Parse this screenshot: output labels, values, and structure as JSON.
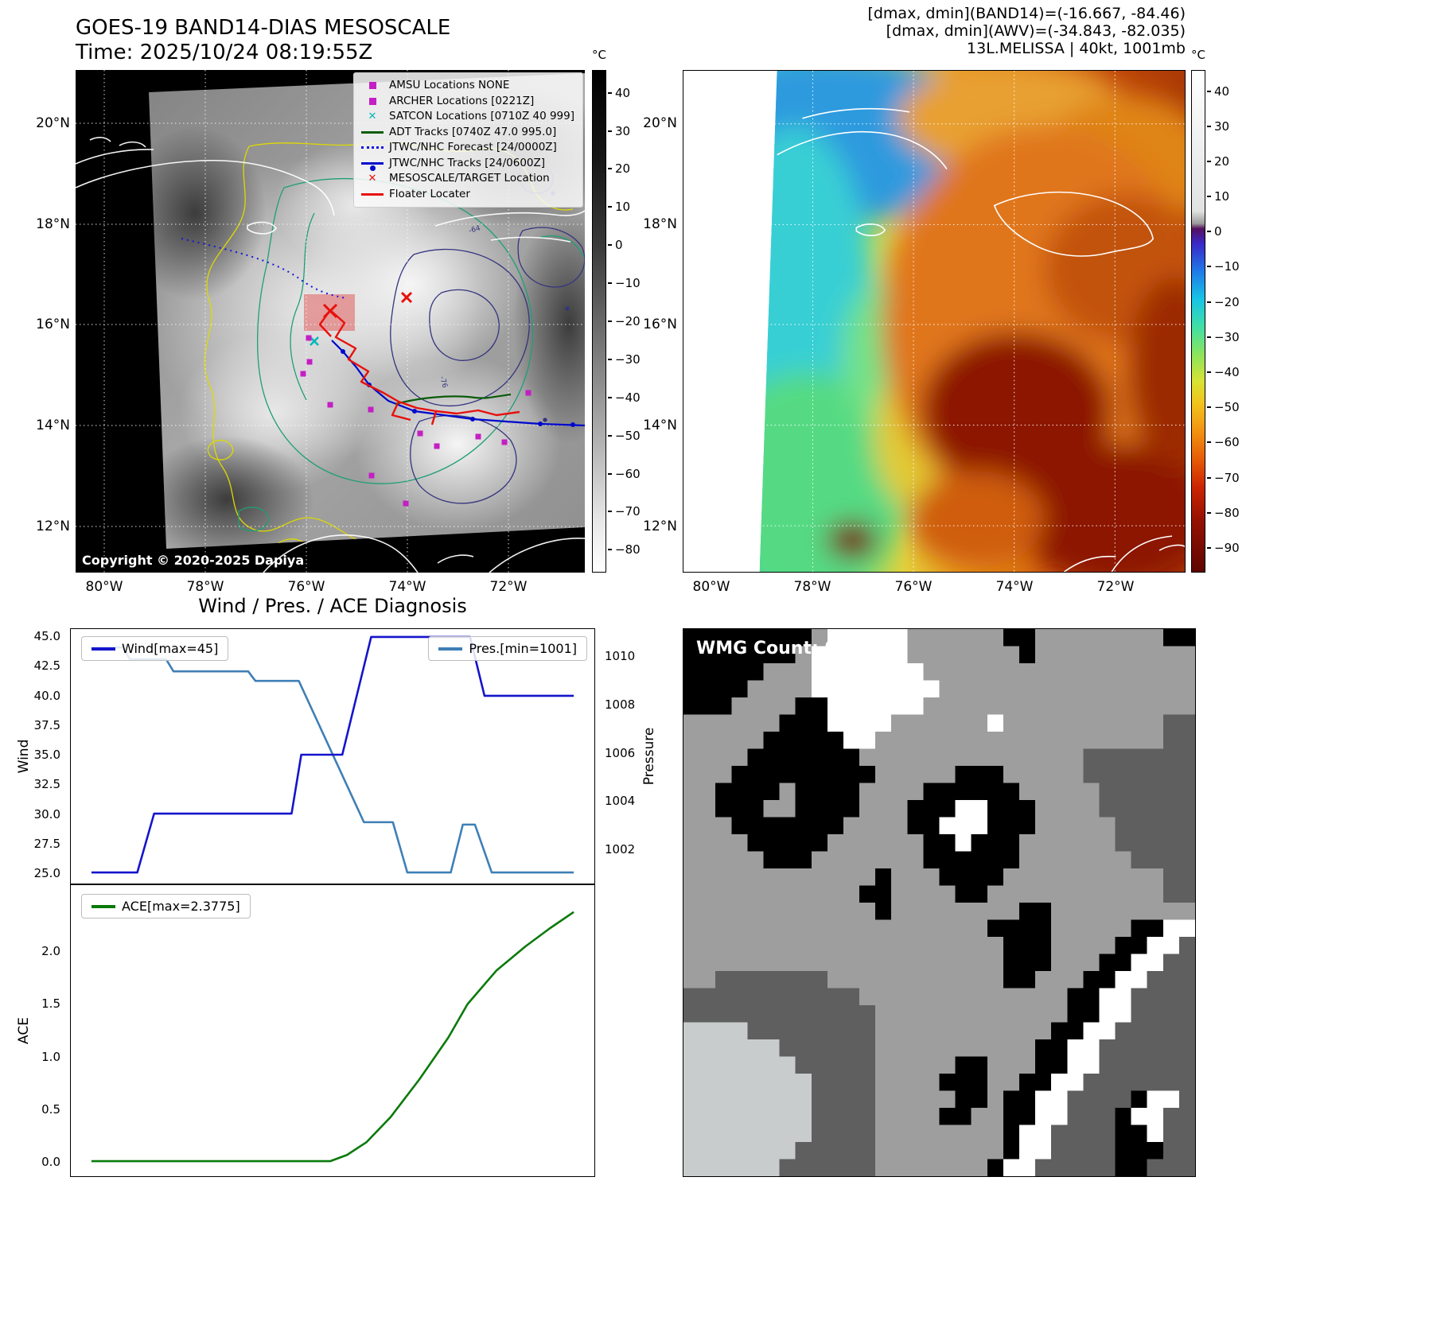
{
  "panel_band14": {
    "title_line1": "GOES-19 BAND14-DIAS MESOSCALE",
    "title_line2": "Time: 2025/10/24 08:19:55Z",
    "copyright": "Copyright © 2020-2025 Dapiya",
    "colorbar_unit": "°C",
    "colorbar_ticks": [
      "40",
      "30",
      "20",
      "10",
      "0",
      "−10",
      "−20",
      "−30",
      "−40",
      "−50",
      "−60",
      "−70",
      "−80"
    ],
    "lat_ticks": [
      "20°N",
      "18°N",
      "16°N",
      "14°N",
      "12°N"
    ],
    "lon_ticks": [
      "80°W",
      "78°W",
      "76°W",
      "74°W",
      "72°W"
    ],
    "contour_labels": [
      "-64",
      "-76"
    ],
    "legend": [
      {
        "label": "AMSU Locations NONE",
        "swatch": "square",
        "color": "#c41fc4"
      },
      {
        "label": "ARCHER Locations [0221Z]",
        "swatch": "square",
        "color": "#c41fc4"
      },
      {
        "label": "SATCON Locations [0710Z 40 999]",
        "swatch": "x",
        "color": "#00b8b8"
      },
      {
        "label": "ADT Tracks [0740Z 47.0 995.0]",
        "swatch": "line",
        "color": "#0a5c0a"
      },
      {
        "label": "JTWC/NHC Forecast [24/0000Z]",
        "swatch": "dotted",
        "color": "#1515dd"
      },
      {
        "label": "JTWC/NHC Tracks [24/0600Z]",
        "swatch": "line-dot",
        "color": "#0008cc"
      },
      {
        "label": "MESOSCALE/TARGET Location",
        "swatch": "x",
        "color": "#e8100c"
      },
      {
        "label": "Floater Locater",
        "swatch": "line",
        "color": "#e8100c"
      }
    ]
  },
  "panel_awv": {
    "header_lines": [
      "[dmax, dmin](BAND14)=(-16.667, -84.46)",
      "[dmax, dmin](AWV)=(-34.843, -82.035)",
      "13L.MELISSA | 40kt, 1001mb"
    ],
    "colorbar_unit": "°C",
    "colorbar_ticks": [
      "40",
      "30",
      "20",
      "10",
      "0",
      "−10",
      "−20",
      "−30",
      "−40",
      "−50",
      "−60",
      "−70",
      "−80",
      "−90"
    ],
    "lat_ticks": [
      "20°N",
      "18°N",
      "16°N",
      "14°N",
      "12°N"
    ],
    "lon_ticks": [
      "80°W",
      "78°W",
      "76°W",
      "74°W",
      "72°W"
    ]
  },
  "chart_data": {
    "type": "line",
    "title": "Wind / Pres. / ACE Diagnosis",
    "wind_max": 45,
    "pres_min": 1001,
    "ace_max": 2.3775,
    "top_panel": {
      "left_axis": {
        "label": "Wind",
        "ticks": [
          45.0,
          42.5,
          40.0,
          37.5,
          35.0,
          32.5,
          30.0,
          27.5,
          25.0
        ]
      },
      "right_axis": {
        "label": "Pressure",
        "ticks": [
          1010,
          1008,
          1006,
          1004,
          1002
        ]
      },
      "series": [
        {
          "name": "Wind[max=45]",
          "color": "#1414cc",
          "axis": "left",
          "x": [
            0,
            0.095,
            0.13,
            0.415,
            0.435,
            0.52,
            0.58,
            0.785,
            0.815,
            1.0
          ],
          "y": [
            25,
            25,
            30,
            30,
            35,
            35,
            45,
            45,
            40,
            40
          ]
        },
        {
          "name": "Pres.[min=1001]",
          "color": "#3f7fb5",
          "axis": "right",
          "x": [
            0,
            0.065,
            0.08,
            0.155,
            0.17,
            0.325,
            0.34,
            0.43,
            0.565,
            0.625,
            0.655,
            0.715,
            0.745,
            0.77,
            0.795,
            0.83,
            1.0
          ],
          "y": [
            1010.4,
            1010.4,
            1009.9,
            1009.9,
            1009.4,
            1009.4,
            1009.0,
            1009.0,
            1003.1,
            1003.1,
            1001,
            1001,
            1001,
            1003,
            1003,
            1001,
            1001
          ]
        }
      ]
    },
    "bottom_panel": {
      "left_axis": {
        "label": "ACE",
        "ticks": [
          2.0,
          1.5,
          1.0,
          0.5,
          0.0
        ]
      },
      "series": [
        {
          "name": "ACE[max=2.3775]",
          "color": "#0a7a0a",
          "x": [
            0,
            0.495,
            0.53,
            0.57,
            0.62,
            0.68,
            0.74,
            0.78,
            0.84,
            0.9,
            0.95,
            1.0
          ],
          "y": [
            0,
            0,
            0.06,
            0.18,
            0.42,
            0.78,
            1.18,
            1.5,
            1.82,
            2.05,
            2.22,
            2.3775
          ]
        }
      ]
    }
  },
  "panel_wmg": {
    "count_label": "WMG Count: 0",
    "palette": {
      "k": "#000000",
      "d": "#5f5f5f",
      "g": "#9e9e9e",
      "l": "#c9cccc",
      "w": "#ffffff"
    },
    "grid": [
      "kkkkkkkkgwwwwwggggggkkggggggggkk",
      "kkkkkkkgwwwwwwgggggggkgggggggggg",
      "kkkkkgggwwwwwwwggggggggggggggggg",
      "kkkkggggwwwwwwwwgggggggggggggggg",
      "kkkggggkkwwwwwwggggggggggggggggg",
      "ggggggkkkwwwwggggggwggggggggggdd",
      "gggggkkkkkwwggggggggggggggggggdd",
      "ggggkkkkkkkggggggggggggggddddddd",
      "gggkkkkkkkkkgggggkkkgggggddddddd",
      "ggkkkkgkkkkggggkkkkkkgggggdddddd",
      "ggkkkggkkkkgggkkkwwkkkggggdddddd",
      "gggkkkkkkkggggkkwwwkkkgggggddddd",
      "ggggkkkkkggggggkkwkkkggggggddddd",
      "gggggkkkgggggggkkkkkkgggggggdddd",
      "ggggggggggggkgggkkkkggggggggggdd",
      "gggggggggggkkggggkkgggggggggggdd",
      "ggggggggggggkggggggggkkggggggggg",
      "gggggggggggggggggggkkkkgggggkkww",
      "ggggggggggggggggggggkkkggggkkwwd",
      "ggggggggggggggggggggkkkgggkkwwdd",
      "ggdddddddgggggggggggkkgggkkwwddd",
      "dddddddddddgggggggggggggkkwwdddd",
      "ddddddddddddggggggggggggkkwwdddd",
      "llllddddddddgggggggggggkkwwddddd",
      "llllllddddddggggggggggkkwwdddddd",
      "llllllldddddgggggkkgggkkwwdddddd",
      "llllllllddddggggkkkggkkwwddddddd",
      "llllllllddddgggggkkgkkwwddddkwwd",
      "llllllllddddggggkkggkkwwdddkwwdd",
      "llllllllddddggggggggkwwddddkkwdd",
      "llllllldddddggggggggkwwddddkkkdd",
      "llllllddddddgggggggkwwdddddkkddd"
    ]
  }
}
